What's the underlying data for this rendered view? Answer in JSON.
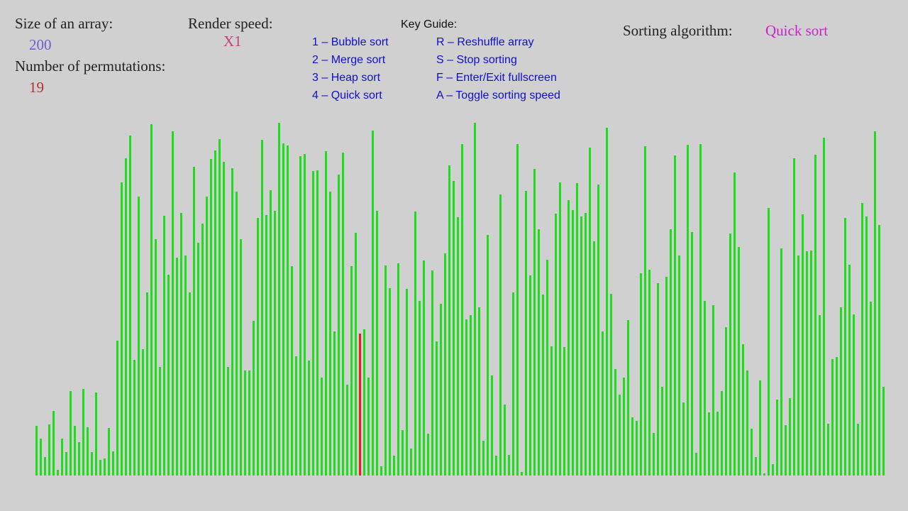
{
  "header": {
    "size_label": "Size of an array:",
    "size_value": 200,
    "permutations_label": "Number of permutations:",
    "permutations_value": 19,
    "speed_label": "Render speed:",
    "speed_value": "X1",
    "algorithm_label": "Sorting algorithm:",
    "algorithm_value": "Quick sort"
  },
  "key_guide": {
    "title": "Key Guide:",
    "algorithms": [
      "1 – Bubble sort",
      "2 – Merge sort",
      "3 – Heap sort",
      "4 – Quick sort"
    ],
    "controls": [
      "R – Reshuffle array",
      "S – Stop sorting",
      "F – Enter/Exit fullscreen",
      "A – Toggle sorting speed"
    ]
  },
  "array": {
    "color": "#1fdc1f",
    "highlight_color": "#ee1a1a",
    "highlight_index": 76,
    "values": [
      70,
      52,
      26,
      72,
      91,
      8,
      52,
      33,
      119,
      70,
      47,
      122,
      68,
      33,
      117,
      22,
      24,
      67,
      34,
      190,
      413,
      447,
      479,
      163,
      393,
      178,
      258,
      495,
      333,
      153,
      366,
      283,
      485,
      307,
      370,
      310,
      258,
      435,
      328,
      355,
      393,
      446,
      458,
      474,
      442,
      153,
      433,
      400,
      333,
      148,
      148,
      218,
      363,
      473,
      367,
      402,
      373,
      497,
      468,
      465,
      295,
      168,
      450,
      453,
      162,
      429,
      430,
      138,
      457,
      400,
      203,
      424,
      455,
      128,
      295,
      342,
      200,
      206,
      138,
      486,
      373,
      13,
      296,
      264,
      28,
      299,
      64,
      263,
      38,
      372,
      246,
      303,
      59,
      289,
      189,
      242,
      313,
      437,
      415,
      364,
      467,
      220,
      226,
      497,
      237,
      49,
      339,
      141,
      28,
      396,
      100,
      29,
      258,
      467,
      5,
      401,
      282,
      432,
      347,
      255,
      304,
      182,
      369,
      413,
      181,
      388,
      374,
      412,
      365,
      370,
      462,
      330,
      410,
      203,
      490,
      256,
      150,
      114,
      138,
      219,
      82,
      77,
      285,
      464,
      290,
      60,
      271,
      125,
      280,
      347,
      451,
      310,
      103,
      466,
      343,
      32,
      467,
      246,
      89,
      240,
      90,
      119,
      209,
      341,
      427,
      322,
      185,
      148,
      66,
      26,
      134,
      3,
      377,
      16,
      107,
      320,
      71,
      109,
      447,
      310,
      368,
      316,
      317,
      452,
      226,
      476,
      73,
      164,
      167,
      237,
      363,
      297,
      227,
      73,
      384,
      365,
      245,
      485,
      353,
      125
    ]
  }
}
